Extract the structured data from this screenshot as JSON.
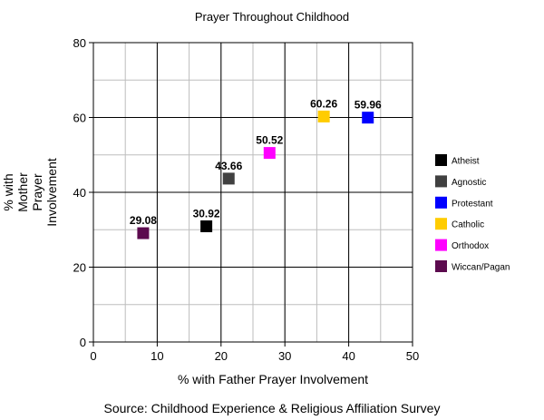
{
  "chart_data": {
    "type": "scatter",
    "title": "Prayer Throughout Childhood",
    "xlabel": "% with Father Prayer Involvement",
    "ylabel": [
      "% with",
      "Mother",
      "Prayer",
      "Involvement"
    ],
    "xlim": [
      0,
      50
    ],
    "ylim": [
      0,
      80
    ],
    "x_major_ticks": [
      0,
      10,
      20,
      30,
      40,
      50
    ],
    "y_major_ticks": [
      0,
      20,
      40,
      60,
      80
    ],
    "x_minor_step": 5,
    "y_minor_step": 10,
    "grid": true,
    "legend_position": "right",
    "series": [
      {
        "name": "Atheist",
        "x": 17.7,
        "y": 30.92,
        "label": "30.92",
        "color": "#000000"
      },
      {
        "name": "Agnostic",
        "x": 21.2,
        "y": 43.66,
        "label": "43.66",
        "color": "#404040"
      },
      {
        "name": "Protestant",
        "x": 43.0,
        "y": 59.96,
        "label": "59.96",
        "color": "#0000ff"
      },
      {
        "name": "Catholic",
        "x": 36.1,
        "y": 60.26,
        "label": "60.26",
        "color": "#ffcc00"
      },
      {
        "name": "Orthodox",
        "x": 27.6,
        "y": 50.52,
        "label": "50.52",
        "color": "#ff00ff"
      },
      {
        "name": "Wiccan/Pagan",
        "x": 7.8,
        "y": 29.08,
        "label": "29.08",
        "color": "#5c0a4e"
      }
    ],
    "source": "Source: Childhood Experience & Religious Affiliation Survey"
  }
}
